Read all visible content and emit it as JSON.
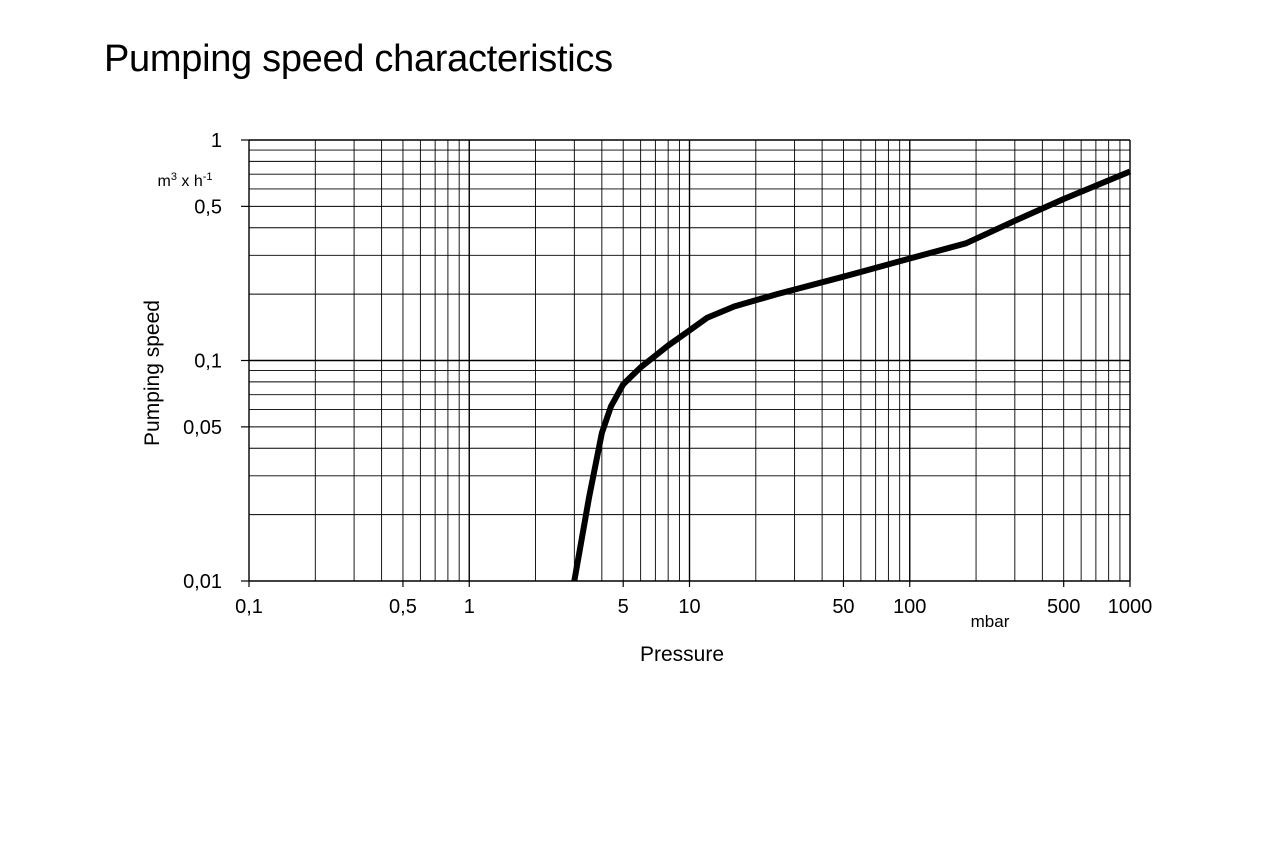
{
  "chart_data": {
    "type": "line",
    "title": "Pumping speed characteristics",
    "xlabel": "Pressure",
    "x_unit": "mbar",
    "ylabel": "Pumping speed",
    "y_unit": {
      "base": "m",
      "base_sup": "3",
      "mid": " x h",
      "mid_sup": "-1"
    },
    "x_scale": "log",
    "y_scale": "log",
    "xlim": [
      0.1,
      1000
    ],
    "ylim": [
      0.01,
      1
    ],
    "grid": true,
    "legend": "none",
    "x_ticks": [
      {
        "value": 0.1,
        "label": "0,1"
      },
      {
        "value": 0.5,
        "label": "0,5"
      },
      {
        "value": 1,
        "label": "1"
      },
      {
        "value": 5,
        "label": "5"
      },
      {
        "value": 10,
        "label": "10"
      },
      {
        "value": 50,
        "label": "50"
      },
      {
        "value": 100,
        "label": "100"
      },
      {
        "value": 500,
        "label": "500"
      },
      {
        "value": 1000,
        "label": "1000"
      }
    ],
    "y_ticks": [
      {
        "value": 0.01,
        "label": "0,01"
      },
      {
        "value": 0.05,
        "label": "0,05"
      },
      {
        "value": 0.1,
        "label": "0,1"
      },
      {
        "value": 0.5,
        "label": "0,5"
      },
      {
        "value": 1,
        "label": "1"
      }
    ],
    "series": [
      {
        "color": "#000000",
        "points": [
          {
            "x": 3,
            "y": 0.01
          },
          {
            "x": 3.5,
            "y": 0.024
          },
          {
            "x": 4,
            "y": 0.047
          },
          {
            "x": 4.4,
            "y": 0.062
          },
          {
            "x": 5,
            "y": 0.078
          },
          {
            "x": 6,
            "y": 0.093
          },
          {
            "x": 8,
            "y": 0.117
          },
          {
            "x": 10,
            "y": 0.137
          },
          {
            "x": 12,
            "y": 0.156
          },
          {
            "x": 16,
            "y": 0.176
          },
          {
            "x": 25,
            "y": 0.2
          },
          {
            "x": 50,
            "y": 0.24
          },
          {
            "x": 100,
            "y": 0.29
          },
          {
            "x": 180,
            "y": 0.34
          },
          {
            "x": 300,
            "y": 0.43
          },
          {
            "x": 500,
            "y": 0.54
          },
          {
            "x": 1000,
            "y": 0.72
          }
        ]
      }
    ]
  }
}
